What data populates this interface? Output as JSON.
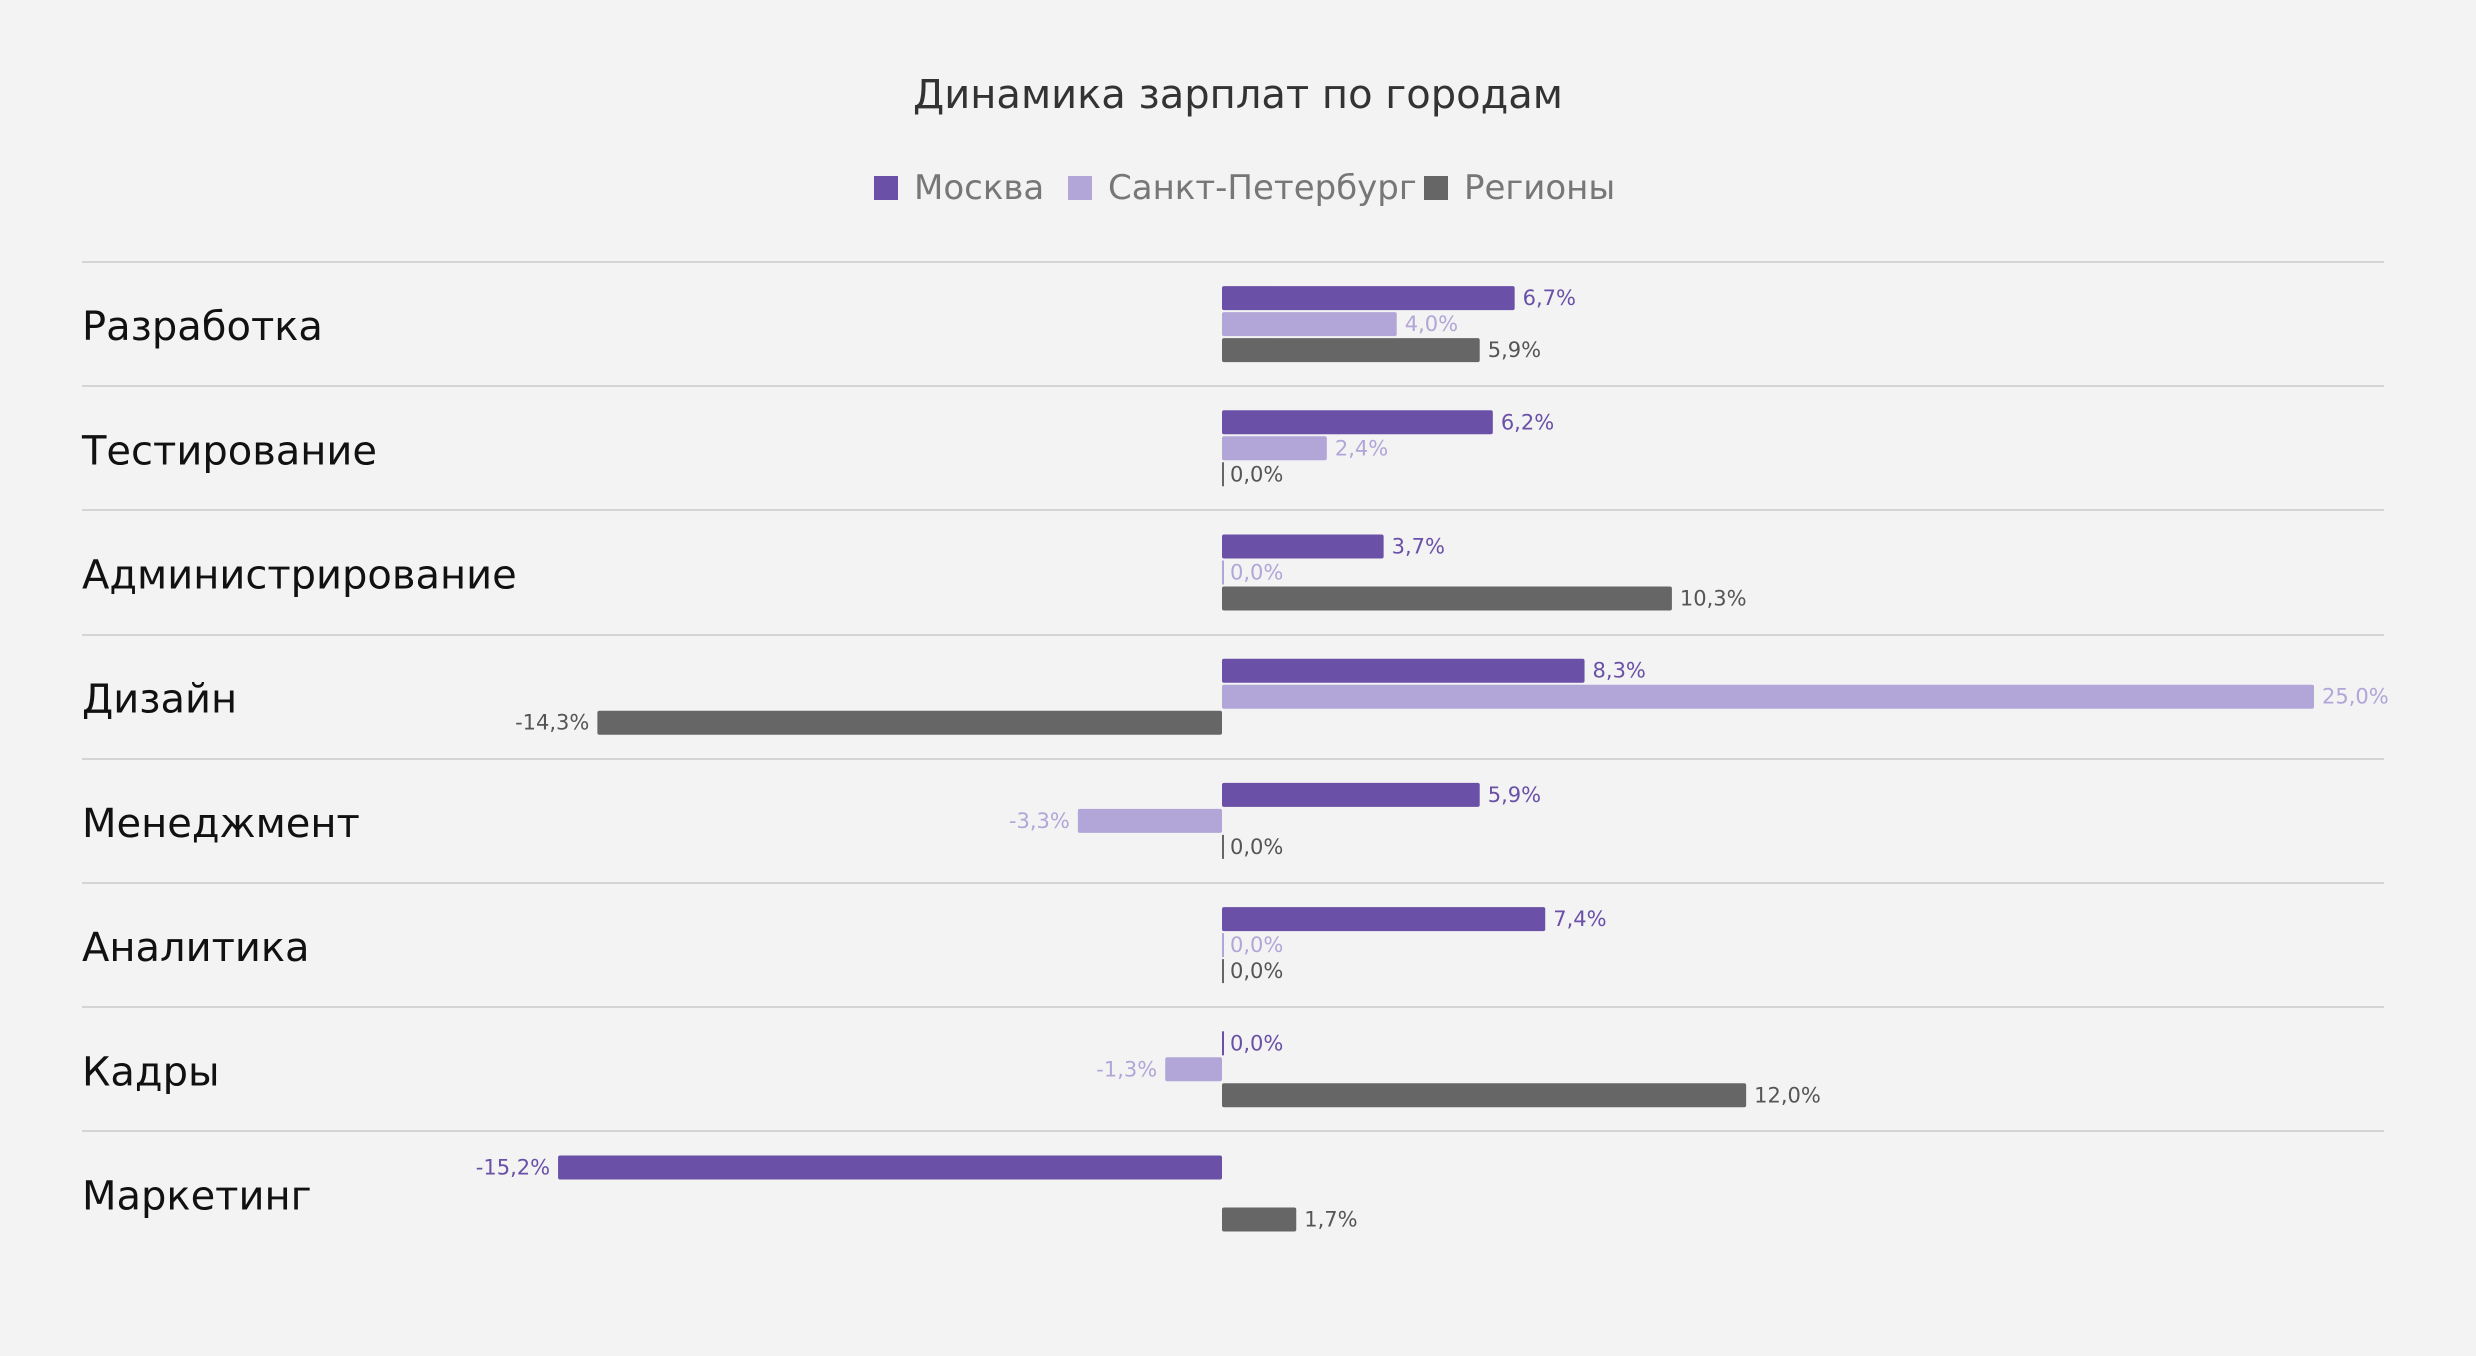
{
  "chart_data": {
    "type": "bar",
    "orientation": "horizontal",
    "title": "Динамика зарплат по городам",
    "categories": [
      "Разработка",
      "Тестирование",
      "Администрирование",
      "Дизайн",
      "Менеджмент",
      "Аналитика",
      "Кадры",
      "Маркетинг"
    ],
    "series": [
      {
        "name": "Москва",
        "color": "#6a50a7",
        "values": [
          6.7,
          6.2,
          3.7,
          8.3,
          5.9,
          7.4,
          0.0,
          -15.2
        ],
        "labels": [
          "6,7%",
          "6,2%",
          "3,7%",
          "8,3%",
          "5,9%",
          "7,4%",
          "0,0%",
          "-15,2%"
        ]
      },
      {
        "name": "Санкт-Петербург",
        "color": "#b2a6d8",
        "values": [
          4.0,
          2.4,
          0.0,
          25.0,
          -3.3,
          0.0,
          -1.3,
          null
        ],
        "labels": [
          "4,0%",
          "2,4%",
          "0,0%",
          "25,0%",
          "-3,3%",
          "0,0%",
          "-1,3%",
          null
        ]
      },
      {
        "name": "Регионы",
        "color": "#666666",
        "values": [
          5.9,
          0.0,
          10.3,
          -14.3,
          0.0,
          0.0,
          12.0,
          1.7
        ],
        "labels": [
          "5,9%",
          "0,0%",
          "10,3%",
          "-14,3%",
          "0,0%",
          "0,0%",
          "12,0%",
          "1,7%"
        ]
      }
    ],
    "xlim": [
      -17.5,
      25.0
    ],
    "legend_position": "top-center",
    "grid": false
  }
}
